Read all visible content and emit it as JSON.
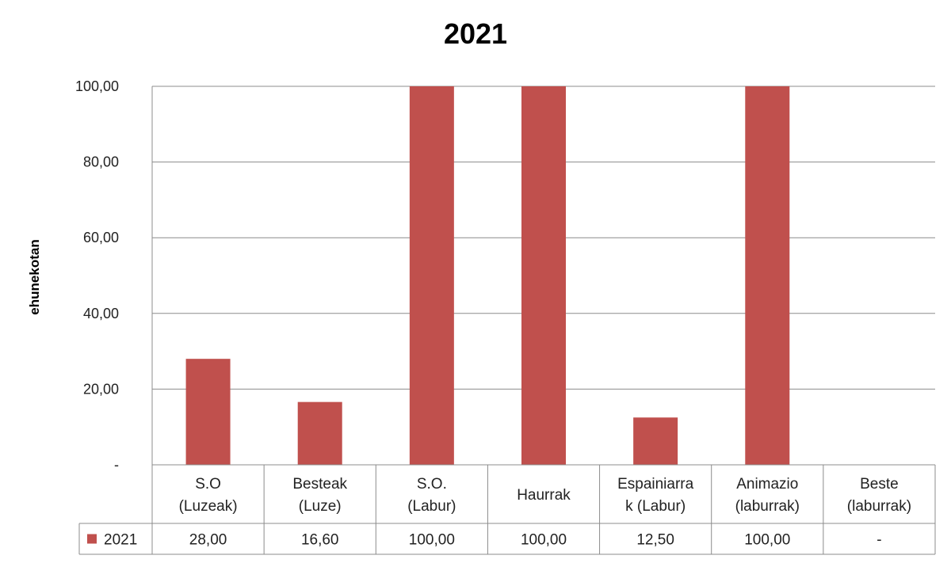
{
  "chart_data": {
    "type": "bar",
    "title": "2021",
    "ylabel": "ehunekotan",
    "xlabel": "",
    "ylim": [
      0,
      100
    ],
    "yticks": [
      "-",
      "20,00",
      "40,00",
      "60,00",
      "80,00",
      "100,00"
    ],
    "categories": [
      [
        "S.O",
        "(Luzeak)"
      ],
      [
        "Besteak",
        "(Luze)"
      ],
      [
        "S.O.",
        "(Labur)"
      ],
      [
        "Haurrak"
      ],
      [
        "Espainiarra",
        "k (Labur)"
      ],
      [
        "Animazio",
        "(laburrak)"
      ],
      [
        "Beste",
        "(laburrak)"
      ]
    ],
    "series": [
      {
        "name": "2021",
        "color": "#c0504d",
        "values": [
          28.0,
          16.6,
          100.0,
          100.0,
          12.5,
          100.0,
          0
        ],
        "labels": [
          "28,00",
          "16,60",
          "100,00",
          "100,00",
          "12,50",
          "100,00",
          "-"
        ]
      }
    ],
    "grid": true,
    "legend": "data-table"
  }
}
